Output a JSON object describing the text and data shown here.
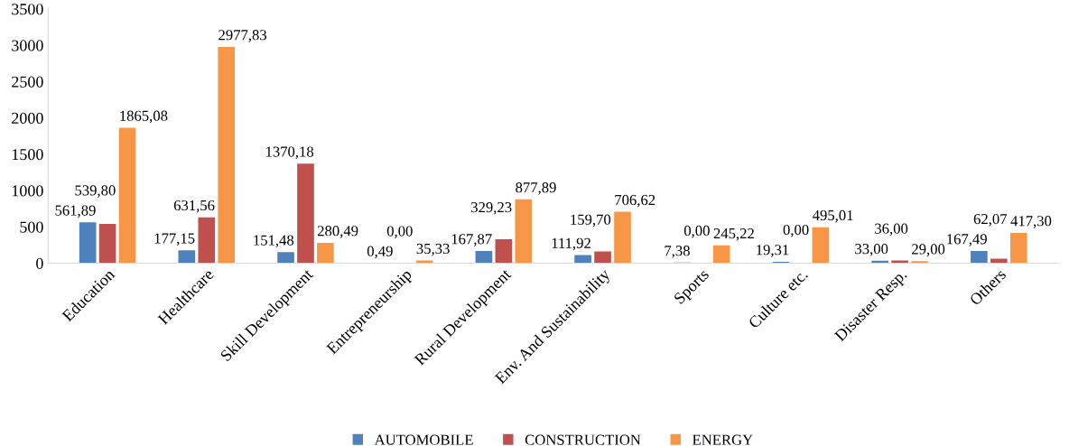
{
  "chart_data": {
    "type": "bar",
    "categories": [
      "Education",
      "Healthcare",
      "Skill Development",
      "Entrepreneurship",
      "Rural Development",
      "Env. And Sustainability",
      "Sports",
      "Culture etc.",
      "Disaster Resp.",
      "Others"
    ],
    "series": [
      {
        "name": "AUTOMOBILE",
        "color": "#4f81bd",
        "values": [
          561.89,
          177.15,
          151.48,
          0.49,
          167.87,
          111.92,
          7.38,
          19.31,
          33.0,
          167.49
        ],
        "value_labels": [
          "561,89",
          "177,15",
          "151,48",
          "0,49",
          "167,87",
          "111,92",
          "7,38",
          "19,31",
          "33,00",
          "167,49"
        ]
      },
      {
        "name": "CONSTRUCTION",
        "color": "#c0504d",
        "values": [
          539.8,
          631.56,
          1370.18,
          0.0,
          329.23,
          159.7,
          0.0,
          0.0,
          36.0,
          62.07
        ],
        "value_labels": [
          "539,80",
          "631,56",
          "1370,18",
          "0,00",
          "329,23",
          "159,70",
          "0,00",
          "0,00",
          "36,00",
          "62,07"
        ]
      },
      {
        "name": "ENERGY",
        "color": "#f79646",
        "values": [
          1865.08,
          2977.83,
          280.49,
          35.33,
          877.89,
          706.62,
          245.22,
          495.01,
          29.0,
          417.3
        ],
        "value_labels": [
          "1865,08",
          "2977,83",
          "280,49",
          "35,33",
          "877,89",
          "706,62",
          "245,22",
          "495,01",
          "29,00",
          "417,30"
        ]
      }
    ],
    "ylim": [
      0,
      3500
    ],
    "yticks": [
      0,
      500,
      1000,
      1500,
      2000,
      2500,
      3000,
      3500
    ],
    "legend": "bottom"
  }
}
